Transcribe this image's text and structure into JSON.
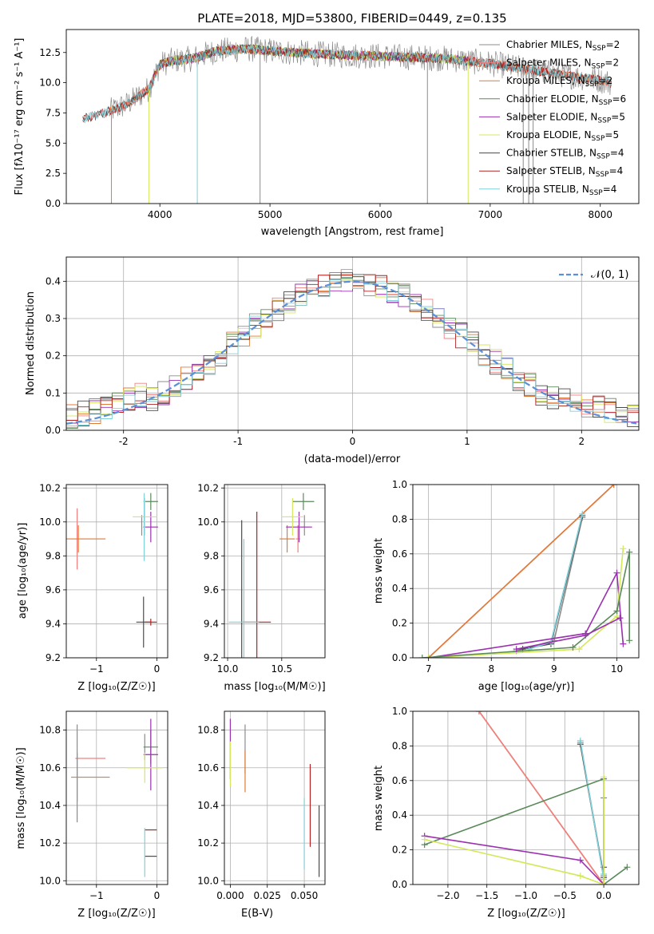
{
  "colors": {
    "chabrier_miles": "#8c8c8c",
    "salpeter_miles": "#f08080",
    "kroupa_miles": "#e07b39",
    "chabrier_elodie": "#5b8a5b",
    "salpeter_elodie": "#9b30b0",
    "kroupa_elodie": "#d4e85a",
    "chabrier_stelib": "#4a4a4a",
    "salpeter_stelib": "#b22222",
    "kroupa_stelib": "#7fd0d8",
    "normal": "#5b8fd8"
  },
  "chart_data": [
    {
      "id": "spectrum",
      "type": "line",
      "title": "PLATE=2018, MJD=53800, FIBERID=0449, z=0.135",
      "xlabel": "wavelength [Angstrom, rest frame]",
      "ylabel": "Flux [fλ10⁻¹⁷ erg cm⁻² s⁻¹ A⁻¹]",
      "xlim": [
        3150,
        8350
      ],
      "ylim": [
        0,
        14.4
      ],
      "xticks": [
        4000,
        5000,
        6000,
        7000,
        8000
      ],
      "yticks": [
        0.0,
        2.5,
        5.0,
        7.5,
        10.0,
        12.5
      ],
      "ytick_labels": [
        "0.0",
        "2.5",
        "5.0",
        "7.5",
        "10.0",
        "12.5"
      ],
      "grid": false,
      "legend_position": "right",
      "legend": [
        {
          "main": "Chabrier MILES, N",
          "sub": "SSP",
          "tail": "=2",
          "color": "chabrier_miles"
        },
        {
          "main": "Salpeter MILES, N",
          "sub": "SSP",
          "tail": "=2",
          "color": "salpeter_miles"
        },
        {
          "main": "Kroupa MILES, N",
          "sub": "SSP",
          "tail": "=2",
          "color": "kroupa_miles"
        },
        {
          "main": "Chabrier ELODIE, N",
          "sub": "SSP",
          "tail": "=6",
          "color": "chabrier_elodie"
        },
        {
          "main": "Salpeter ELODIE, N",
          "sub": "SSP",
          "tail": "=5",
          "color": "salpeter_elodie"
        },
        {
          "main": "Kroupa ELODIE, N",
          "sub": "SSP",
          "tail": "=5",
          "color": "kroupa_elodie"
        },
        {
          "main": "Chabrier STELIB, N",
          "sub": "SSP",
          "tail": "=4",
          "color": "chabrier_stelib"
        },
        {
          "main": "Salpeter STELIB, N",
          "sub": "SSP",
          "tail": "=4",
          "color": "salpeter_stelib"
        },
        {
          "main": "Kroupa STELIB, N",
          "sub": "SSP",
          "tail": "=4",
          "color": "kroupa_stelib"
        }
      ],
      "continuum": {
        "x": [
          3300,
          3500,
          3700,
          3900,
          4000,
          4100,
          4300,
          4500,
          4800,
          5200,
          5600,
          6000,
          6300,
          6600,
          7000,
          7400,
          7700,
          8000,
          8100
        ],
        "y": [
          7.0,
          7.5,
          8.2,
          9.5,
          11.5,
          11.8,
          12.0,
          12.6,
          12.8,
          12.5,
          12.3,
          12.2,
          12.1,
          12.0,
          11.6,
          11.0,
          10.6,
          10.2,
          10.0
        ]
      },
      "absorption_dips": [
        {
          "x": 3560,
          "y": 0.0
        },
        {
          "x": 3900,
          "y": 0.0
        },
        {
          "x": 4340,
          "y": 0.0
        },
        {
          "x": 4910,
          "y": 0.0
        },
        {
          "x": 6430,
          "y": 0.0
        },
        {
          "x": 6800,
          "y": 0.0
        },
        {
          "x": 7300,
          "y": 0.0
        },
        {
          "x": 7350,
          "y": 0.0
        },
        {
          "x": 7390,
          "y": 0.0
        }
      ]
    },
    {
      "id": "residuals",
      "type": "line",
      "xlabel": "(data-model)/error",
      "ylabel": "Normed distribution",
      "xlim": [
        -2.5,
        2.5
      ],
      "ylim": [
        0,
        0.465
      ],
      "xticks": [
        -2,
        -1,
        0,
        1,
        2
      ],
      "yticks": [
        0.0,
        0.1,
        0.2,
        0.3,
        0.4
      ],
      "ytick_labels": [
        "0.0",
        "0.1",
        "0.2",
        "0.3",
        "0.4"
      ],
      "grid": true,
      "legend_position": "top-right",
      "legend_label": "𝒩(0, 1)"
    },
    {
      "id": "age_vs_z",
      "type": "scatter",
      "xlabel": "Z [log₁₀(Z/Z☉)]",
      "ylabel": "age  [log₁₀(age/yr)]",
      "xlim": [
        -1.5,
        0.18
      ],
      "ylim": [
        9.2,
        10.22
      ],
      "xticks": [
        -1,
        0
      ],
      "xtick_labels": [
        "−1",
        "0"
      ],
      "yticks": [
        9.2,
        9.4,
        9.6,
        9.8,
        10.0,
        10.2
      ],
      "ytick_labels": [
        "9.2",
        "9.4",
        "9.6",
        "9.8",
        "10.0",
        "10.2"
      ],
      "grid": true,
      "points": [
        {
          "model": "chabrier_miles",
          "x": -0.25,
          "y": 9.98,
          "xerr": 0.0,
          "yerr": 0.06
        },
        {
          "model": "salpeter_miles",
          "x": -1.32,
          "y": 9.9,
          "xerr": 0.02,
          "yerr": 0.18
        },
        {
          "model": "kroupa_miles",
          "x": -1.3,
          "y": 9.9,
          "xerr": 0.45,
          "yerr": 0.08
        },
        {
          "model": "chabrier_elodie",
          "x": -0.1,
          "y": 10.12,
          "xerr": 0.12,
          "yerr": 0.05
        },
        {
          "model": "salpeter_elodie",
          "x": -0.1,
          "y": 9.97,
          "xerr": 0.12,
          "yerr": 0.09
        },
        {
          "model": "kroupa_elodie",
          "x": -0.2,
          "y": 10.03,
          "xerr": 0.2,
          "yerr": 0.11
        },
        {
          "model": "chabrier_stelib",
          "x": -0.22,
          "y": 9.41,
          "xerr": 0.12,
          "yerr": 0.15
        },
        {
          "model": "salpeter_stelib",
          "x": -0.1,
          "y": 9.41,
          "xerr": 0.1,
          "yerr": 0.02
        },
        {
          "model": "kroupa_stelib",
          "x": -0.21,
          "y": 9.97,
          "xerr": 0.02,
          "yerr": 0.2
        }
      ]
    },
    {
      "id": "age_vs_mass",
      "type": "scatter",
      "xlabel": "mass [log₁₀(M/M☉)]",
      "ylabel": "",
      "xlim": [
        9.97,
        10.9
      ],
      "ylim": [
        9.2,
        10.22
      ],
      "xticks": [
        10.0,
        10.5
      ],
      "xtick_labels": [
        "10.0",
        "10.5"
      ],
      "yticks": [
        9.2,
        9.4,
        9.6,
        9.8,
        10.0,
        10.2
      ],
      "ytick_labels": [
        "9.2",
        "9.4",
        "9.6",
        "9.8",
        "10.0",
        "10.2"
      ],
      "grid": true,
      "points": [
        {
          "model": "chabrier_miles",
          "x": 10.71,
          "y": 9.98,
          "xerr": 0.0,
          "yerr": 0.06
        },
        {
          "model": "salpeter_miles",
          "x": 10.65,
          "y": 9.9,
          "xerr": 0.02,
          "yerr": 0.08
        },
        {
          "model": "kroupa_miles",
          "x": 10.55,
          "y": 9.9,
          "xerr": 0.07,
          "yerr": 0.08
        },
        {
          "model": "chabrier_elodie",
          "x": 10.7,
          "y": 10.12,
          "xerr": 0.1,
          "yerr": 0.05
        },
        {
          "model": "salpeter_elodie",
          "x": 10.66,
          "y": 9.97,
          "xerr": 0.12,
          "yerr": 0.09
        },
        {
          "model": "kroupa_elodie",
          "x": 10.6,
          "y": 10.03,
          "xerr": 0.1,
          "yerr": 0.11
        },
        {
          "model": "chabrier_stelib",
          "x": 10.13,
          "y": 9.41,
          "xerr": 0.0,
          "yerr": 0.6
        },
        {
          "model": "salpeter_stelib",
          "x": 10.27,
          "y": 9.41,
          "xerr": 0.13,
          "yerr": 0.65
        },
        {
          "model": "kroupa_stelib",
          "x": 10.15,
          "y": 9.41,
          "xerr": 0.14,
          "yerr": 0.49
        }
      ]
    },
    {
      "id": "mass_weight_vs_age",
      "type": "line",
      "xlabel": "age  [log₁₀(age/yr)]",
      "ylabel": "mass weight",
      "xlim": [
        6.75,
        10.35
      ],
      "ylim": [
        0,
        1.0
      ],
      "xticks": [
        7,
        8,
        9,
        10
      ],
      "xtick_labels": [
        "7",
        "8",
        "9",
        "10"
      ],
      "yticks": [
        0.0,
        0.2,
        0.4,
        0.6,
        0.8,
        1.0
      ],
      "ytick_labels": [
        "0.0",
        "0.2",
        "0.4",
        "0.6",
        "0.8",
        "1.0"
      ],
      "grid": true,
      "series": [
        {
          "model": "salpeter_miles",
          "x": [
            7.0,
            9.95
          ],
          "y": [
            0.0,
            1.0
          ]
        },
        {
          "model": "kroupa_miles",
          "x": [
            7.0,
            9.95
          ],
          "y": [
            0.0,
            1.0
          ]
        },
        {
          "model": "chabrier_miles",
          "x": [
            8.4,
            9.0,
            9.45
          ],
          "y": [
            0.04,
            0.1,
            0.81
          ]
        },
        {
          "model": "chabrier_stelib",
          "x": [
            8.5,
            8.95,
            9.45
          ],
          "y": [
            0.05,
            0.08,
            0.82
          ]
        },
        {
          "model": "kroupa_stelib",
          "x": [
            8.6,
            8.95,
            9.45
          ],
          "y": [
            0.05,
            0.09,
            0.83
          ]
        },
        {
          "model": "salpeter_elodie",
          "x": [
            7.0,
            9.5,
            10.0,
            10.1
          ],
          "y": [
            0.0,
            0.14,
            0.49,
            0.08
          ]
        },
        {
          "model": "kroupa_elodie",
          "x": [
            7.0,
            9.4,
            10.0,
            10.1
          ],
          "y": [
            0.0,
            0.05,
            0.24,
            0.63
          ]
        },
        {
          "model": "chabrier_elodie",
          "x": [
            6.9,
            9.3,
            10.0,
            10.2,
            10.2
          ],
          "y": [
            0.0,
            0.06,
            0.27,
            0.61,
            0.1
          ]
        },
        {
          "model": "salpeter_elodie",
          "x": [
            8.4,
            9.5,
            10.05
          ],
          "y": [
            0.05,
            0.13,
            0.23
          ]
        }
      ]
    },
    {
      "id": "mass_vs_z",
      "type": "scatter",
      "xlabel": "Z [log₁₀(Z/Z☉)]",
      "ylabel": "mass [log₁₀(M/M☉)]",
      "xlim": [
        -1.5,
        0.18
      ],
      "ylim": [
        9.98,
        10.9
      ],
      "xticks": [
        -1,
        0
      ],
      "xtick_labels": [
        "−1",
        "0"
      ],
      "yticks": [
        10.0,
        10.2,
        10.4,
        10.6,
        10.8
      ],
      "ytick_labels": [
        "10.0",
        "10.2",
        "10.4",
        "10.6",
        "10.8"
      ],
      "grid": true,
      "points": [
        {
          "model": "chabrier_miles",
          "x": -0.2,
          "y": 10.71,
          "xerr": 0.0,
          "yerr": 0.07
        },
        {
          "model": "salpeter_miles",
          "x": -1.1,
          "y": 10.65,
          "xerr": 0.25,
          "yerr": 0.0
        },
        {
          "model": "kroupa_miles",
          "x": -1.32,
          "y": 10.55,
          "xerr": 0.0,
          "yerr": 0.13
        },
        {
          "model": "chabrier_miles",
          "x": -1.32,
          "y": 10.57,
          "xerr": 0.0,
          "yerr": 0.26
        },
        {
          "model": "kroupa_miles",
          "x": -1.1,
          "y": 10.55,
          "xerr": 0.32,
          "yerr": 0.0
        },
        {
          "model": "chabrier_elodie",
          "x": -0.1,
          "y": 10.71,
          "xerr": 0.12,
          "yerr": 0.09
        },
        {
          "model": "salpeter_elodie",
          "x": -0.1,
          "y": 10.67,
          "xerr": 0.12,
          "yerr": 0.19
        },
        {
          "model": "kroupa_elodie",
          "x": -0.2,
          "y": 10.6,
          "xerr": 0.3,
          "yerr": 0.08
        },
        {
          "model": "chabrier_stelib",
          "x": -0.1,
          "y": 10.13,
          "xerr": 0.1,
          "yerr": 0.0
        },
        {
          "model": "salpeter_stelib",
          "x": -0.1,
          "y": 10.27,
          "xerr": 0.1,
          "yerr": 0.0
        },
        {
          "model": "kroupa_stelib",
          "x": -0.2,
          "y": 10.15,
          "xerr": 0.0,
          "yerr": 0.13
        }
      ]
    },
    {
      "id": "mass_vs_ebv",
      "type": "scatter",
      "xlabel": "E(B-V)",
      "ylabel": "",
      "xlim": [
        -0.004,
        0.064
      ],
      "ylim": [
        9.98,
        10.9
      ],
      "xticks": [
        0.0,
        0.025,
        0.05
      ],
      "xtick_labels": [
        "0.000",
        "0.025",
        "0.050"
      ],
      "yticks": [
        10.0,
        10.2,
        10.4,
        10.6,
        10.8
      ],
      "ytick_labels": [
        "10.0",
        "10.2",
        "10.4",
        "10.6",
        "10.8"
      ],
      "grid": true,
      "points": [
        {
          "model": "salpeter_elodie",
          "x": 0.0,
          "y": 10.7,
          "xerr": 0.0,
          "yerr": 0.16
        },
        {
          "model": "kroupa_elodie",
          "x": 0.0,
          "y": 10.62,
          "xerr": 0.0,
          "yerr": 0.12
        },
        {
          "model": "chabrier_miles",
          "x": 0.01,
          "y": 10.7,
          "xerr": 0.0,
          "yerr": 0.13
        },
        {
          "model": "kroupa_miles",
          "x": 0.01,
          "y": 10.58,
          "xerr": 0.0,
          "yerr": 0.11
        },
        {
          "model": "salpeter_stelib",
          "x": 0.054,
          "y": 10.4,
          "xerr": 0.0,
          "yerr": 0.22
        },
        {
          "model": "kroupa_stelib",
          "x": 0.05,
          "y": 10.25,
          "xerr": 0.0,
          "yerr": 0.19
        },
        {
          "model": "chabrier_stelib",
          "x": 0.06,
          "y": 10.21,
          "xerr": 0.0,
          "yerr": 0.19
        }
      ]
    },
    {
      "id": "mass_weight_vs_z",
      "type": "line",
      "xlabel": "Z [log₁₀(Z/Z☉)]",
      "ylabel": "mass weight",
      "xlim": [
        -2.45,
        0.45
      ],
      "ylim": [
        0,
        1.0
      ],
      "xticks": [
        -2.0,
        -1.5,
        -1.0,
        -0.5,
        0.0
      ],
      "xtick_labels": [
        "−2.0",
        "−1.5",
        "−1.0",
        "−0.5",
        "0.0"
      ],
      "yticks": [
        0.0,
        0.2,
        0.4,
        0.6,
        0.8,
        1.0
      ],
      "ytick_labels": [
        "0.0",
        "0.2",
        "0.4",
        "0.6",
        "0.8",
        "1.0"
      ],
      "grid": true,
      "series": [
        {
          "model": "kroupa_miles",
          "x": [
            -1.6,
            0.0
          ],
          "y": [
            1.0,
            0.0
          ]
        },
        {
          "model": "salpeter_miles",
          "x": [
            -1.6,
            0.0
          ],
          "y": [
            1.0,
            0.0
          ]
        },
        {
          "model": "chabrier_miles",
          "x": [
            -0.3,
            0.0,
            0.0
          ],
          "y": [
            0.82,
            0.05,
            0.5
          ]
        },
        {
          "model": "chabrier_stelib",
          "x": [
            -0.3,
            0.0,
            0.0
          ],
          "y": [
            0.81,
            0.04,
            0.1
          ]
        },
        {
          "model": "kroupa_stelib",
          "x": [
            -0.3,
            0.0,
            0.0
          ],
          "y": [
            0.83,
            0.03,
            0.06
          ]
        },
        {
          "model": "chabrier_elodie",
          "x": [
            -2.3,
            0.0,
            0.0,
            0.3
          ],
          "y": [
            0.23,
            0.61,
            0.0,
            0.1
          ]
        },
        {
          "model": "salpeter_elodie",
          "x": [
            -2.3,
            -0.3,
            0.0
          ],
          "y": [
            0.28,
            0.14,
            0.0
          ]
        },
        {
          "model": "kroupa_elodie",
          "x": [
            -2.3,
            -0.3,
            0.0,
            0.0
          ],
          "y": [
            0.26,
            0.05,
            0.0,
            0.62
          ]
        }
      ]
    }
  ]
}
